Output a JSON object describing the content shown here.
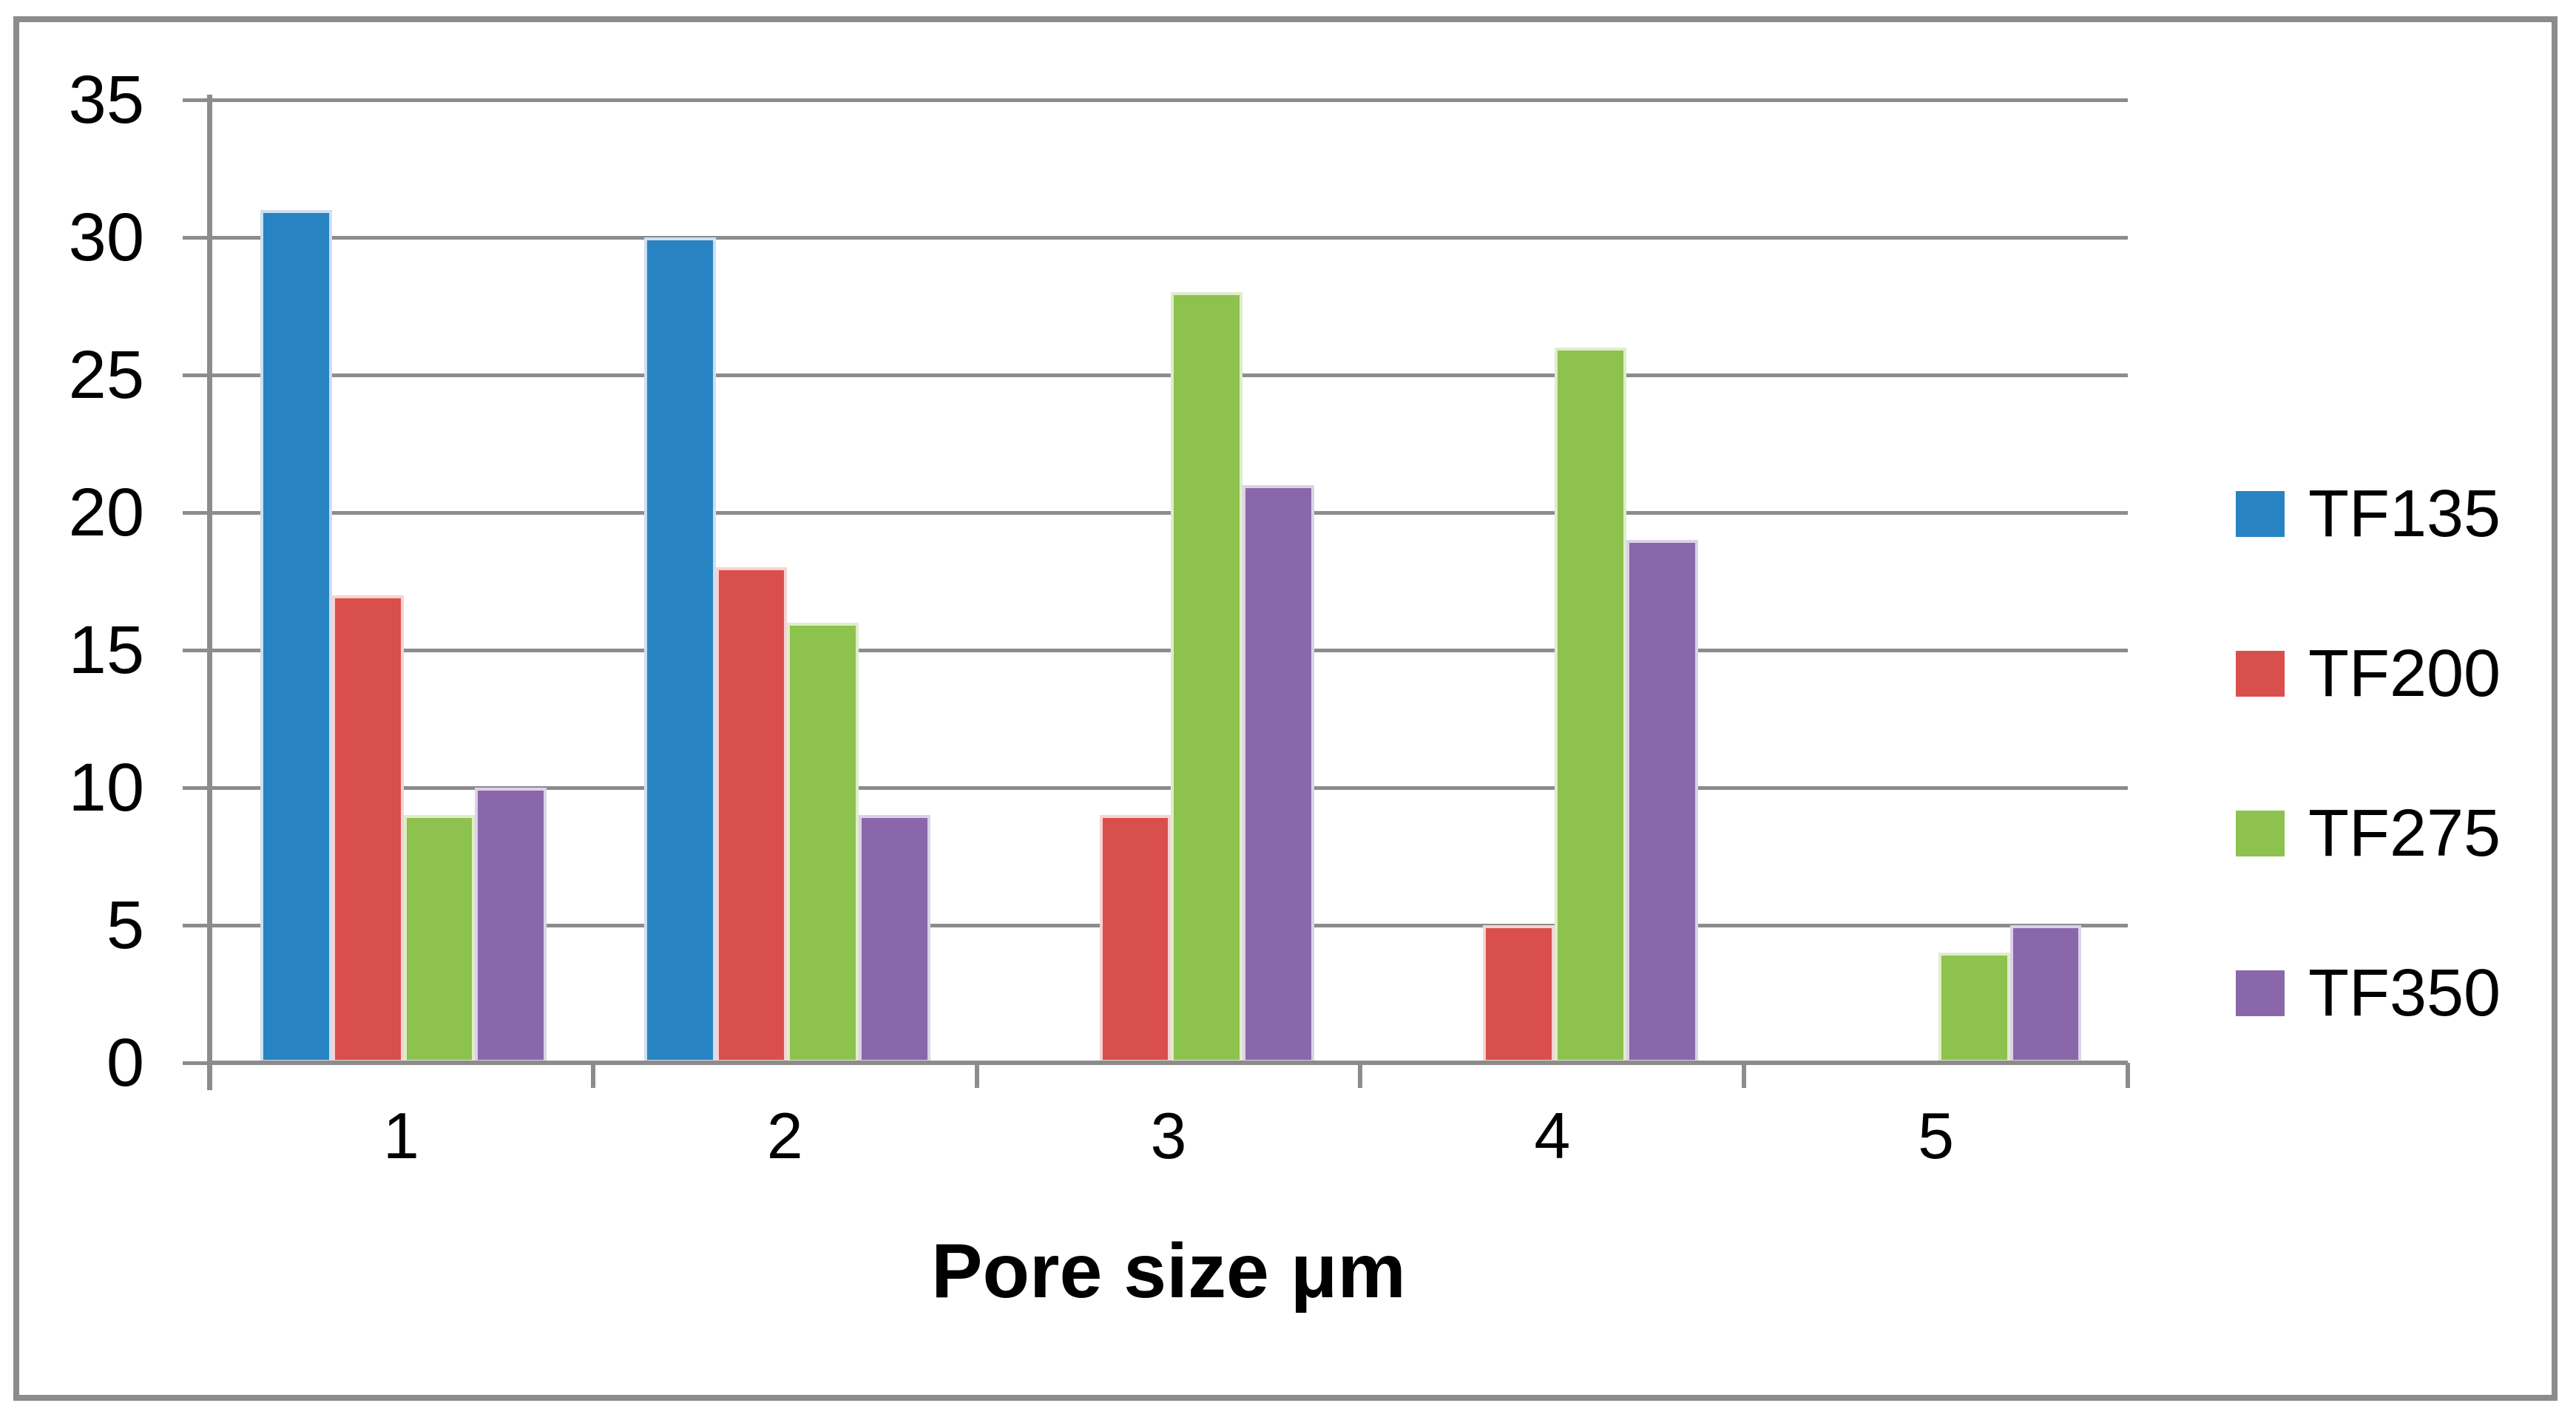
{
  "chart_data": {
    "type": "bar",
    "title": "",
    "xlabel": "Pore size μm",
    "ylabel": "",
    "categories": [
      "1",
      "2",
      "3",
      "4",
      "5"
    ],
    "series": [
      {
        "name": "TF135",
        "color": "#2883C2",
        "edge": "#CEDFF2",
        "values": [
          31,
          30,
          0,
          0,
          0
        ]
      },
      {
        "name": "TF200",
        "color": "#D94F4B",
        "edge": "#F6D3D1",
        "values": [
          17,
          18,
          9,
          5,
          0
        ]
      },
      {
        "name": "TF275",
        "color": "#8CC24D",
        "edge": "#DFEDCB",
        "values": [
          9,
          16,
          28,
          26,
          4
        ]
      },
      {
        "name": "TF350",
        "color": "#8A67AB",
        "edge": "#DCD2E8",
        "values": [
          10,
          9,
          21,
          19,
          5
        ]
      }
    ],
    "ylim": [
      0,
      35
    ],
    "ytick_interval": 5,
    "yticks": [
      35,
      30,
      25,
      20,
      15,
      10,
      5,
      0
    ],
    "grid": "horizontal",
    "legend_position": "right"
  },
  "colors": {
    "grid": "#8C8C8C",
    "axis": "#8C8C8C",
    "border": "#8C8C8C",
    "text": "#000000",
    "background": "#FFFFFF"
  }
}
